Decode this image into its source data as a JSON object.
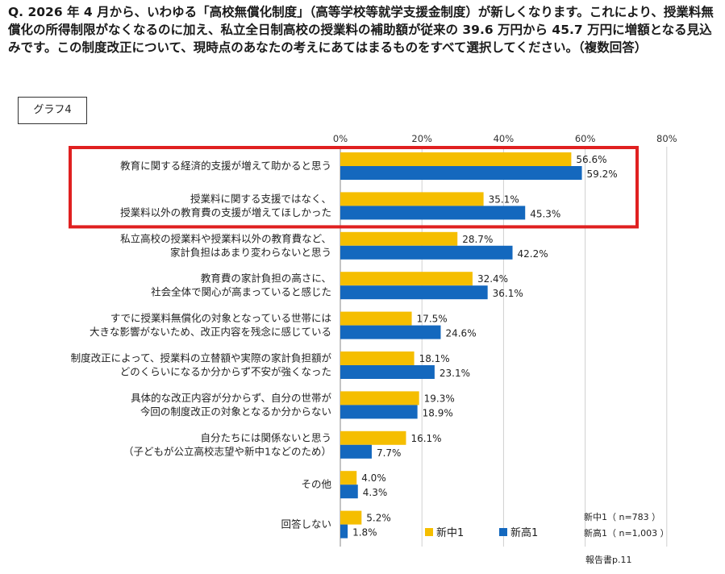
{
  "question": "Q. 2026 年 4 月から、いわゆる「高校無償化制度」（高等学校等就学支援金制度）が新しくなります。これにより、授業料無償化の所得制限がなくなるのに加え、私立全日制高校の授業料の補助額が従来の 39.6 万円から 45.7 万円に増額となる見込みです。この制度改正について、現時点のあなたの考えにあてはまるものをすべて選択してください。（複数回答）",
  "graph_label": "グラフ4",
  "colors": {
    "series1": "#F5BE00",
    "series2": "#1468BE",
    "highlight": "#E02020",
    "grid": "#d0d0d0"
  },
  "chart_data": {
    "type": "bar",
    "orientation": "horizontal",
    "title": "",
    "xlim": [
      0,
      80
    ],
    "xticks": [
      "0%",
      "20%",
      "40%",
      "60%",
      "80%"
    ],
    "categories": [
      [
        "教育に関する経済的支援が増えて助かると思う"
      ],
      [
        "授業料に関する支援ではなく、",
        "授業料以外の教育費の支援が増えてほしかった"
      ],
      [
        "私立高校の授業料や授業料以外の教育費など、",
        "家計負担はあまり変わらないと思う"
      ],
      [
        "教育費の家計負担の高さに、",
        "社会全体で関心が高まっていると感じた"
      ],
      [
        "すでに授業料無償化の対象となっている世帯には",
        "大きな影響がないため、改正内容を残念に感じている"
      ],
      [
        "制度改正によって、授業料の立替額や実際の家計負担額が",
        "どのくらいになるか分からず不安が強くなった"
      ],
      [
        "具体的な改正内容が分からず、自分の世帯が",
        "今回の制度改正の対象となるか分からない"
      ],
      [
        "自分たちには関係ないと思う",
        "（子どもが公立高校志望や新中1などのため）"
      ],
      [
        "その他"
      ],
      [
        "回答しない"
      ]
    ],
    "series": [
      {
        "name": "新中1",
        "values": [
          56.6,
          35.1,
          28.7,
          32.4,
          17.5,
          18.1,
          19.3,
          16.1,
          4.0,
          5.2
        ],
        "labels": [
          "56.6%",
          "35.1%",
          "28.7%",
          "32.4%",
          "17.5%",
          "18.1%",
          "19.3%",
          "16.1%",
          "4.0%",
          "5.2%"
        ]
      },
      {
        "name": "新高1",
        "values": [
          59.2,
          45.3,
          42.2,
          36.1,
          24.6,
          23.1,
          18.9,
          7.7,
          4.3,
          1.8
        ],
        "labels": [
          "59.2%",
          "45.3%",
          "42.2%",
          "36.1%",
          "24.6%",
          "23.1%",
          "18.9%",
          "7.7%",
          "4.3%",
          "1.8%"
        ]
      }
    ],
    "highlighted_categories": [
      0,
      1
    ],
    "sample_notes": [
      "新中1（ n=783 ）",
      "新高1（ n=1,003 ）"
    ],
    "footer": "報告書p.11"
  }
}
